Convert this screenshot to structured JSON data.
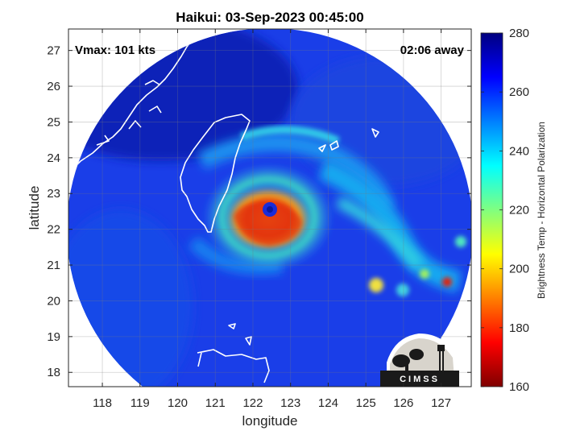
{
  "chart_data": {
    "type": "heatmap",
    "title": "Haikui: 03-Sep-2023 00:45:00",
    "annotations": {
      "vmax": "Vmax: 101 kts",
      "time_away": "02:06 away"
    },
    "xlabel": "longitude",
    "ylabel": "latitude",
    "xlim": [
      117.1,
      127.8
    ],
    "ylim": [
      17.6,
      27.6
    ],
    "xticks": [
      118,
      119,
      120,
      121,
      122,
      123,
      124,
      125,
      126,
      127
    ],
    "yticks": [
      18,
      19,
      20,
      21,
      22,
      23,
      24,
      25,
      26,
      27
    ],
    "grid": true,
    "storm_center": {
      "lon": 122.45,
      "lat": 22.55
    },
    "colorbar": {
      "label": "Brightness Temp - Horizontal Polarization",
      "range": [
        160,
        280
      ],
      "ticks": [
        160,
        180,
        200,
        220,
        240,
        260,
        280
      ],
      "colormap": "jet"
    },
    "logo_text": "CIMSS"
  },
  "colors": {
    "land_outline": "#ffffff",
    "background_field": "#1030e0"
  }
}
